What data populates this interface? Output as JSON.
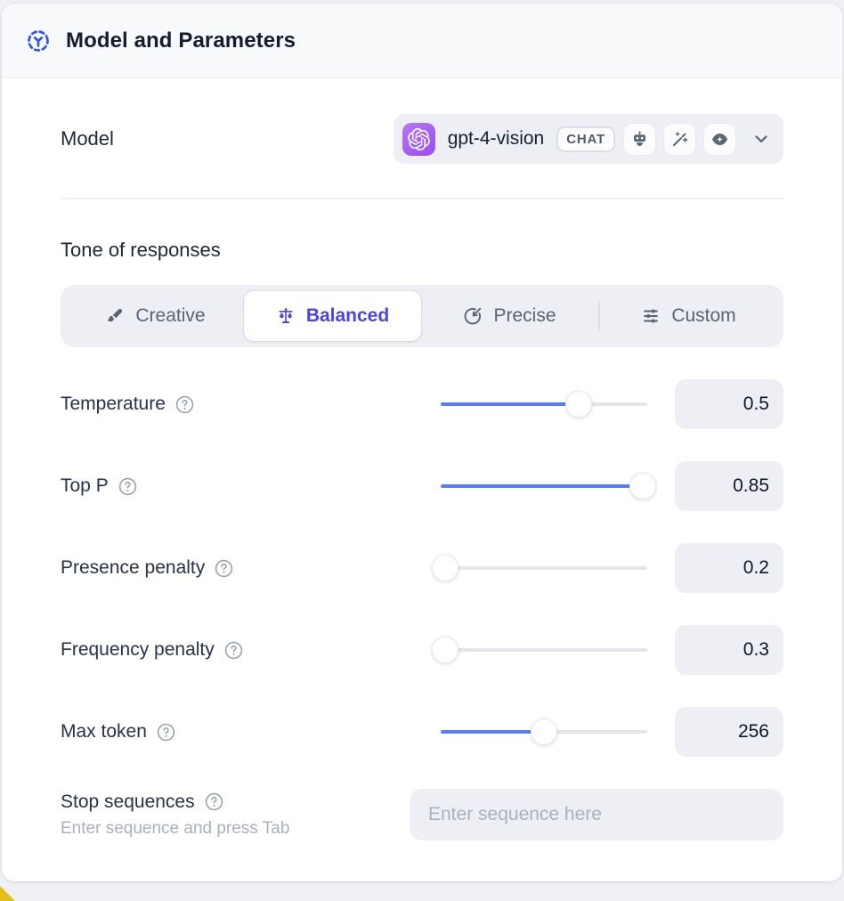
{
  "header": {
    "title": "Model and Parameters"
  },
  "model_row": {
    "label": "Model",
    "selected_model": "gpt-4-vision",
    "type_badge": "CHAT",
    "capability_icons": [
      "robot-icon",
      "magic-wand-icon",
      "vision-eye-icon"
    ]
  },
  "tone_section": {
    "title": "Tone of responses",
    "tabs": [
      {
        "label": "Creative",
        "icon": "paintbrush-icon",
        "active": false
      },
      {
        "label": "Balanced",
        "icon": "balance-scale-icon",
        "active": true
      },
      {
        "label": "Precise",
        "icon": "target-icon",
        "active": false
      },
      {
        "label": "Custom",
        "icon": "sliders-icon",
        "active": false
      }
    ]
  },
  "parameters": [
    {
      "label": "Temperature",
      "value": "0.5",
      "percent": 67
    },
    {
      "label": "Top P",
      "value": "0.85",
      "percent": 98
    },
    {
      "label": "Presence penalty",
      "value": "0.2",
      "percent": 2
    },
    {
      "label": "Frequency penalty",
      "value": "0.3",
      "percent": 2
    },
    {
      "label": "Max token",
      "value": "256",
      "percent": 50
    }
  ],
  "stop_sequences": {
    "label": "Stop sequences",
    "hint": "Enter sequence and press Tab",
    "placeholder": "Enter sequence here"
  },
  "colors": {
    "accent": "#4a44e4",
    "slider_fill": "#5b7cf7",
    "header_icon_blue": "#2f56f0",
    "provider_purple": "#a259f0",
    "corner_yellow": "#e3bf1c"
  }
}
